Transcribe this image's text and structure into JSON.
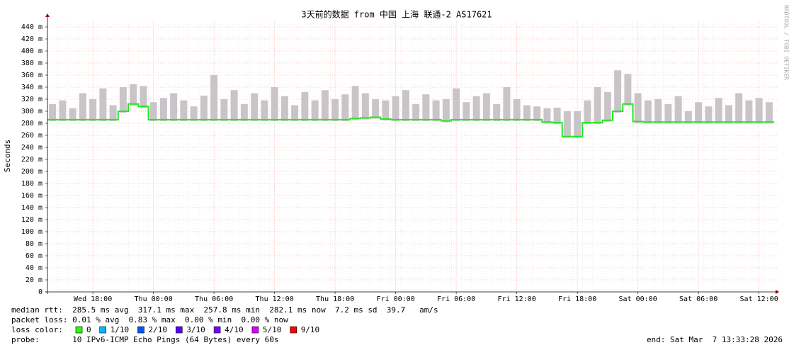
{
  "chart_data": {
    "type": "smokeping",
    "title": "3天前的数据 from 中国 上海 联通-2 AS17621",
    "y_label": "Seconds",
    "watermark": "RRDTOOL / TOBI OETIKER",
    "ylim": [
      0,
      450
    ],
    "yticks": [
      0,
      {
        "value": 20,
        "label": "20 m"
      },
      {
        "value": 40,
        "label": "40 m"
      },
      {
        "value": 60,
        "label": "60 m"
      },
      {
        "value": 80,
        "label": "80 m"
      },
      {
        "value": 100,
        "label": "100 m"
      },
      {
        "value": 120,
        "label": "120 m"
      },
      {
        "value": 140,
        "label": "140 m"
      },
      {
        "value": 160,
        "label": "160 m"
      },
      {
        "value": 180,
        "label": "180 m"
      },
      {
        "value": 200,
        "label": "200 m"
      },
      {
        "value": 220,
        "label": "220 m"
      },
      {
        "value": 240,
        "label": "240 m"
      },
      {
        "value": 260,
        "label": "260 m"
      },
      {
        "value": 280,
        "label": "280 m"
      },
      {
        "value": 300,
        "label": "300 m"
      },
      {
        "value": 320,
        "label": "320 m"
      },
      {
        "value": 340,
        "label": "340 m"
      },
      {
        "value": 360,
        "label": "360 m"
      },
      {
        "value": 380,
        "label": "380 m"
      },
      {
        "value": 400,
        "label": "400 m"
      },
      {
        "value": 420,
        "label": "420 m"
      },
      {
        "value": 440,
        "label": "440 m"
      }
    ],
    "grid": true,
    "categories": [
      null,
      null,
      null,
      null,
      "Wed 18:00",
      null,
      null,
      null,
      null,
      null,
      "Thu 00:00",
      null,
      null,
      null,
      null,
      null,
      "Thu 06:00",
      null,
      null,
      null,
      null,
      null,
      "Thu 12:00",
      null,
      null,
      null,
      null,
      null,
      "Thu 18:00",
      null,
      null,
      null,
      null,
      null,
      "Fri 00:00",
      null,
      null,
      null,
      null,
      null,
      "Fri 06:00",
      null,
      null,
      null,
      null,
      null,
      "Fri 12:00",
      null,
      null,
      null,
      null,
      null,
      "Fri 18:00",
      null,
      null,
      null,
      null,
      null,
      "Sat 00:00",
      null,
      null,
      null,
      null,
      null,
      "Sat 06:00",
      null,
      null,
      null,
      null,
      null,
      "Sat 12:00",
      null
    ],
    "series": [
      {
        "color": "#22e822",
        "values": [
          286,
          286,
          286,
          286,
          286,
          286,
          286,
          300,
          312,
          308,
          286,
          286,
          286,
          286,
          286,
          286,
          286,
          286,
          286,
          286,
          286,
          286,
          286,
          286,
          286,
          286,
          286,
          286,
          286,
          286,
          288,
          289,
          290,
          287,
          286,
          286,
          286,
          286,
          286,
          284,
          286,
          286,
          286,
          286,
          286,
          286,
          286,
          286,
          286,
          282,
          281,
          258,
          258,
          281,
          281,
          285,
          300,
          312,
          283,
          282,
          282,
          282,
          282,
          282,
          282,
          282,
          282,
          282,
          282,
          282,
          282,
          282
        ]
      },
      {
        "color": "#c8c4c8",
        "values": [
          312,
          318,
          305,
          330,
          320,
          338,
          310,
          340,
          345,
          342,
          315,
          322,
          330,
          318,
          308,
          326,
          360,
          320,
          335,
          312,
          330,
          318,
          340,
          325,
          310,
          332,
          318,
          335,
          320,
          328,
          342,
          330,
          320,
          318,
          325,
          335,
          312,
          328,
          318,
          320,
          338,
          315,
          325,
          330,
          312,
          340,
          320,
          310,
          308,
          305,
          306,
          300,
          300,
          318,
          340,
          332,
          368,
          362,
          330,
          318,
          320,
          312,
          325,
          300,
          315,
          308,
          322,
          310,
          330,
          318,
          322,
          315
        ]
      }
    ],
    "stats": [
      "median rtt:  285.5 ms avg  317.1 ms max  257.8 ms min  282.1 ms now  7.2 ms sd  39.7   am/s",
      "packet loss: 0.01 % avg  0.83 % max  0.00 % min  0.00 % now"
    ],
    "loss_legend": {
      "label": "loss color:",
      "items": [
        {
          "label": "0",
          "color": "#26ff00"
        },
        {
          "label": "1/10",
          "color": "#00b8ff"
        },
        {
          "label": "2/10",
          "color": "#0059ff"
        },
        {
          "label": "3/10",
          "color": "#5e00ff"
        },
        {
          "label": "4/10",
          "color": "#7e00ff"
        },
        {
          "label": "5/10",
          "color": "#dd00ff"
        },
        {
          "label": "9/10",
          "color": "#ff0000"
        }
      ]
    },
    "probe": "probe:       10 IPv6-ICMP Echo Pings (64 Bytes) every 60s",
    "end": "end: Sat Mar  7 13:33:28 2026"
  }
}
